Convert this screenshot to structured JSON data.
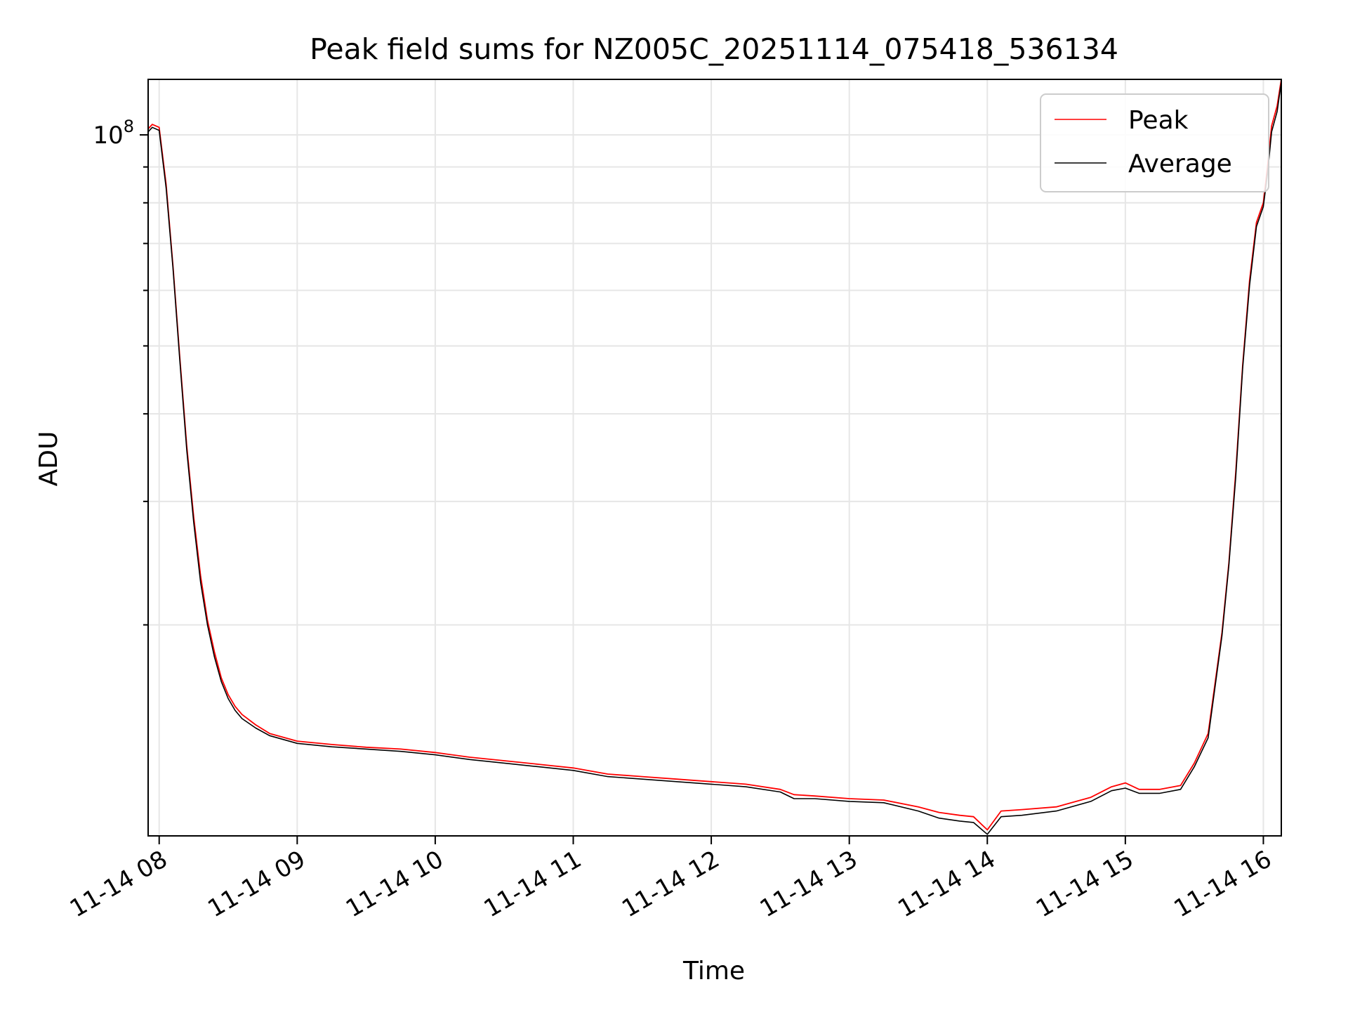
{
  "chart_data": {
    "type": "line",
    "title": "Peak field sums for NZ005C_20251114_075418_536134",
    "xlabel": "Time",
    "ylabel": "ADU",
    "yscale": "log",
    "ylim": [
      10000000,
      120000000
    ],
    "xlim": [
      7.92,
      16.13
    ],
    "x_ticks": [
      {
        "value": 8,
        "label": "11-14 08"
      },
      {
        "value": 9,
        "label": "11-14 09"
      },
      {
        "value": 10,
        "label": "11-14 10"
      },
      {
        "value": 11,
        "label": "11-14 11"
      },
      {
        "value": 12,
        "label": "11-14 12"
      },
      {
        "value": 13,
        "label": "11-14 13"
      },
      {
        "value": 14,
        "label": "11-14 14"
      },
      {
        "value": 15,
        "label": "11-14 15"
      },
      {
        "value": 16,
        "label": "11-14 16"
      }
    ],
    "y_major_ticks": [
      {
        "value": 100000000,
        "base": "10",
        "exp": "8"
      }
    ],
    "y_minor_ticks": [
      20000000,
      30000000,
      40000000,
      50000000,
      60000000,
      70000000,
      80000000,
      90000000
    ],
    "grid": true,
    "legend_position": "top-right",
    "series": [
      {
        "name": "Peak",
        "color": "#ff0000",
        "x": [
          7.92,
          7.95,
          8.0,
          8.05,
          8.1,
          8.15,
          8.2,
          8.25,
          8.3,
          8.35,
          8.4,
          8.45,
          8.5,
          8.55,
          8.6,
          8.7,
          8.8,
          9.0,
          9.25,
          9.5,
          9.75,
          10.0,
          10.25,
          10.5,
          10.75,
          11.0,
          11.25,
          11.5,
          11.75,
          12.0,
          12.25,
          12.5,
          12.6,
          12.75,
          13.0,
          13.25,
          13.5,
          13.65,
          13.8,
          13.9,
          14.0,
          14.1,
          14.25,
          14.5,
          14.75,
          14.9,
          15.0,
          15.1,
          15.25,
          15.4,
          15.5,
          15.6,
          15.65,
          15.7,
          15.75,
          15.8,
          15.85,
          15.9,
          15.95,
          16.0,
          16.03,
          16.06,
          16.1,
          16.13
        ],
        "y": [
          102000000,
          103500000,
          102500000,
          85000000,
          65000000,
          48000000,
          36000000,
          28500000,
          23500000,
          20300000,
          18300000,
          16800000,
          15900000,
          15300000,
          14900000,
          14400000,
          14000000,
          13650000,
          13500000,
          13380000,
          13300000,
          13150000,
          12950000,
          12800000,
          12650000,
          12500000,
          12250000,
          12150000,
          12050000,
          11950000,
          11850000,
          11650000,
          11450000,
          11400000,
          11300000,
          11250000,
          11000000,
          10800000,
          10700000,
          10650000,
          10200000,
          10850000,
          10900000,
          11000000,
          11350000,
          11750000,
          11900000,
          11650000,
          11650000,
          11800000,
          12700000,
          14000000,
          16500000,
          19500000,
          24500000,
          33000000,
          47000000,
          62000000,
          75000000,
          80000000,
          90000000,
          103000000,
          110000000,
          120000000
        ]
      },
      {
        "name": "Average",
        "color": "#000000",
        "x": [
          7.92,
          7.95,
          8.0,
          8.05,
          8.1,
          8.15,
          8.2,
          8.25,
          8.3,
          8.35,
          8.4,
          8.45,
          8.5,
          8.55,
          8.6,
          8.7,
          8.8,
          9.0,
          9.25,
          9.5,
          9.75,
          10.0,
          10.25,
          10.5,
          10.75,
          11.0,
          11.25,
          11.5,
          11.75,
          12.0,
          12.25,
          12.5,
          12.6,
          12.75,
          13.0,
          13.25,
          13.5,
          13.65,
          13.8,
          13.9,
          14.0,
          14.1,
          14.25,
          14.5,
          14.75,
          14.9,
          15.0,
          15.1,
          15.25,
          15.4,
          15.5,
          15.6,
          15.65,
          15.7,
          15.75,
          15.8,
          15.85,
          15.9,
          15.95,
          16.0,
          16.03,
          16.06,
          16.1,
          16.13
        ],
        "y": [
          101000000,
          102500000,
          101500000,
          84000000,
          64500000,
          47500000,
          35500000,
          28000000,
          23000000,
          20000000,
          18000000,
          16600000,
          15700000,
          15100000,
          14700000,
          14250000,
          13900000,
          13550000,
          13400000,
          13300000,
          13200000,
          13050000,
          12850000,
          12700000,
          12550000,
          12400000,
          12150000,
          12050000,
          11950000,
          11850000,
          11750000,
          11550000,
          11300000,
          11300000,
          11200000,
          11150000,
          10850000,
          10600000,
          10500000,
          10450000,
          10050000,
          10650000,
          10700000,
          10850000,
          11200000,
          11600000,
          11700000,
          11500000,
          11500000,
          11650000,
          12550000,
          13800000,
          16300000,
          19300000,
          24300000,
          32500000,
          46500000,
          61000000,
          74000000,
          79000000,
          88000000,
          101000000,
          108000000,
          119000000
        ]
      }
    ]
  }
}
